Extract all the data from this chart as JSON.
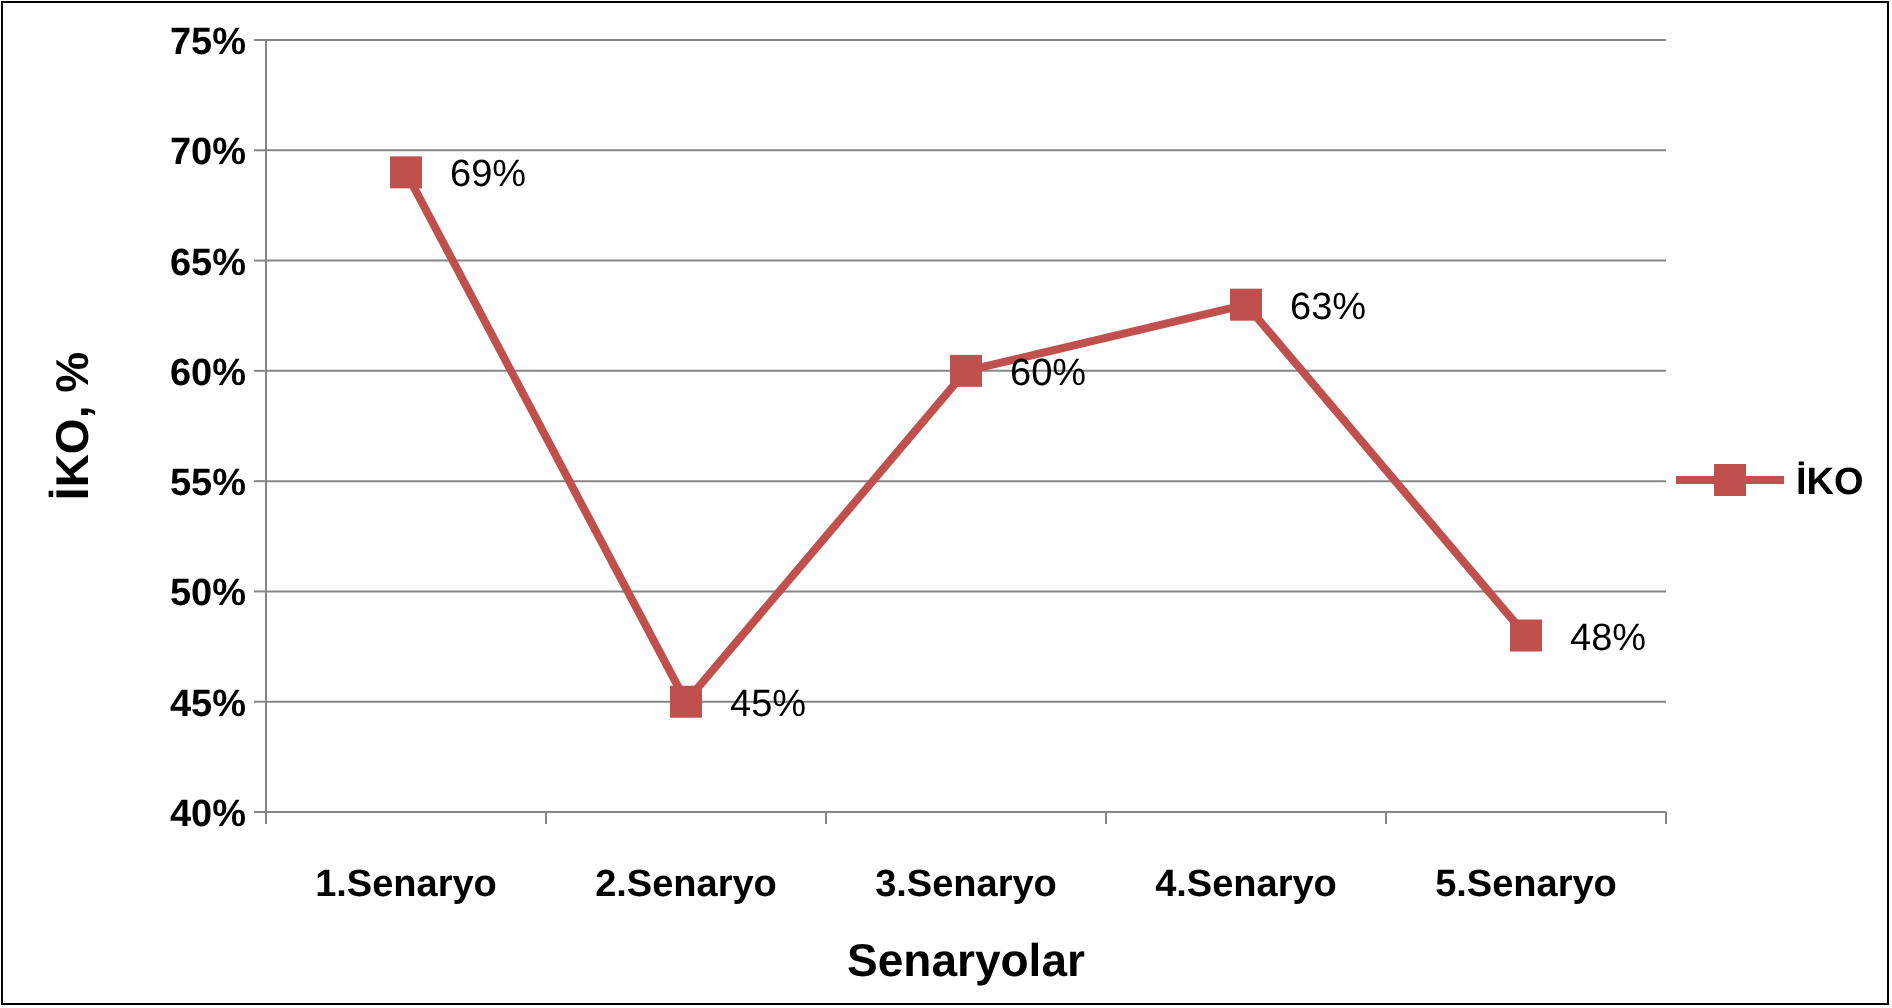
{
  "chart_data": {
    "type": "line",
    "xlabel": "Senaryolar",
    "ylabel": "İKO, %",
    "categories": [
      "1.Senaryo",
      "2.Senaryo",
      "3.Senaryo",
      "4.Senaryo",
      "5.Senaryo"
    ],
    "series": [
      {
        "name": "İKO",
        "color": "#c0504d",
        "values": [
          69,
          45,
          60,
          63,
          48
        ],
        "value_labels": [
          "69%",
          "45%",
          "60%",
          "63%",
          "48%"
        ]
      }
    ],
    "ylim": [
      40,
      75
    ],
    "yticks": [
      {
        "value": 40,
        "label": "40%"
      },
      {
        "value": 45,
        "label": "45%"
      },
      {
        "value": 50,
        "label": "50%"
      },
      {
        "value": 55,
        "label": "55%"
      },
      {
        "value": 60,
        "label": "60%"
      },
      {
        "value": 65,
        "label": "65%"
      },
      {
        "value": 70,
        "label": "70%"
      },
      {
        "value": 75,
        "label": "75%"
      }
    ],
    "grid": "y",
    "legend": "right",
    "marker": "square",
    "line_style": "solid"
  }
}
